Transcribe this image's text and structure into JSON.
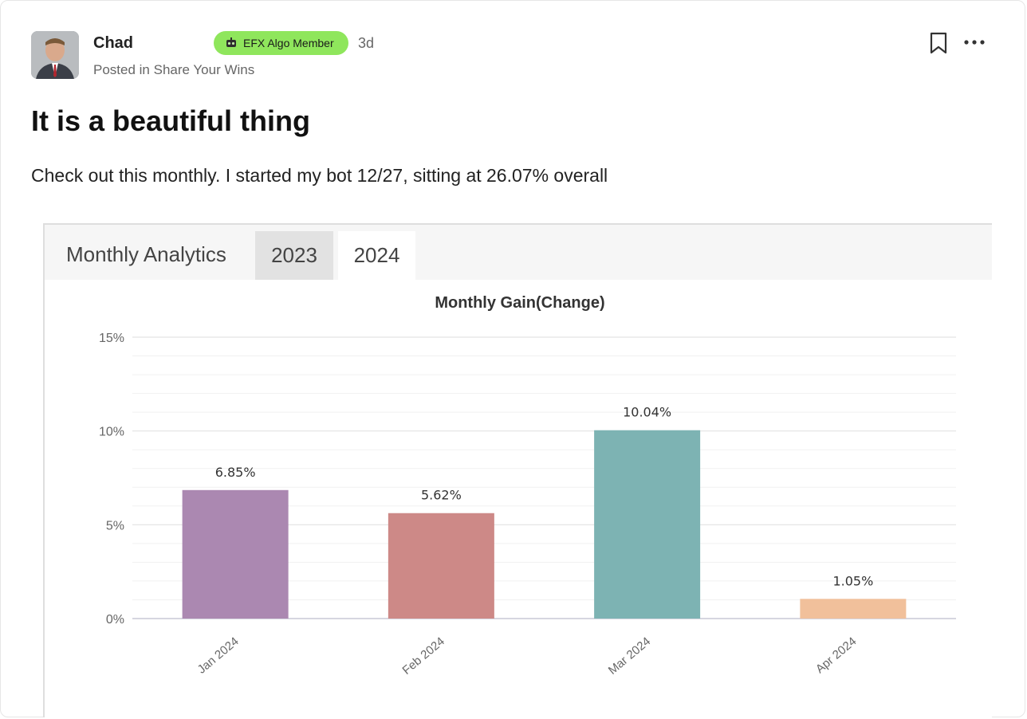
{
  "post": {
    "author": "Chad",
    "badge": "EFX Algo Member",
    "time": "3d",
    "posted_in": "Posted in Share Your Wins",
    "title": "It is a beautiful thing",
    "body": "Check out this monthly. I started my bot 12/27, sitting at 26.07% overall"
  },
  "icons": {
    "badge": "robot-icon",
    "bookmark": "bookmark-icon",
    "more": "more-horizontal-icon"
  },
  "analytics": {
    "heading": "Monthly Analytics",
    "tabs": [
      "2023",
      "2024"
    ],
    "active_tab": "2024"
  },
  "chart_data": {
    "type": "bar",
    "title": "Monthly Gain(Change)",
    "categories": [
      "Jan 2024",
      "Feb 2024",
      "Mar 2024",
      "Apr 2024"
    ],
    "values": [
      6.85,
      5.62,
      10.04,
      1.05
    ],
    "labels": [
      "6.85%",
      "5.62%",
      "10.04%",
      "1.05%"
    ],
    "colors": [
      "#ab88b1",
      "#cd8987",
      "#7db3b3",
      "#f1c09b"
    ],
    "yticks": [
      0,
      5,
      10,
      15
    ],
    "ytick_labels": [
      "0%",
      "5%",
      "10%",
      "15%"
    ],
    "ylim": [
      0,
      15
    ],
    "grid": true,
    "xlabel": "",
    "ylabel": ""
  }
}
